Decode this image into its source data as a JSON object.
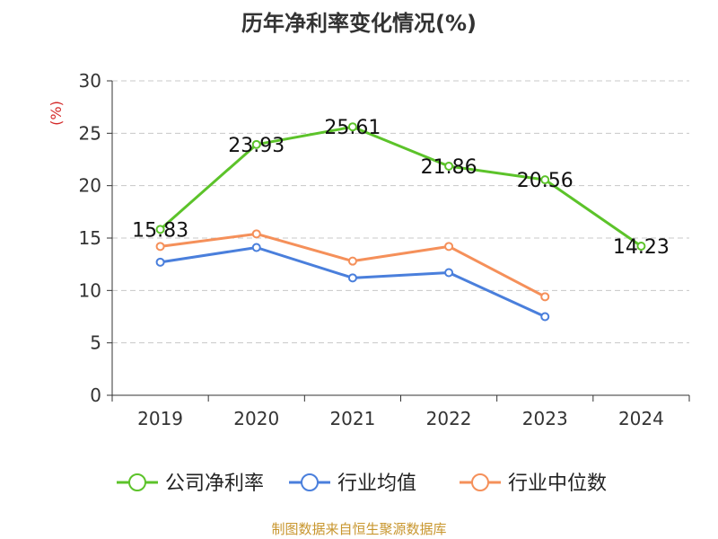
{
  "chart_data": {
    "type": "line",
    "title": "历年净利率变化情况(%)",
    "ylabel": "(%)",
    "categories": [
      "2019",
      "2020",
      "2021",
      "2022",
      "2023",
      "2024"
    ],
    "ylim": [
      0,
      30
    ],
    "yticks": [
      0,
      5,
      10,
      15,
      20,
      25,
      30
    ],
    "grid": true,
    "legend": "bottom",
    "series": [
      {
        "name": "公司净利率",
        "color": "#5cc32a",
        "values": [
          15.83,
          23.93,
          25.61,
          21.86,
          20.56,
          14.23
        ],
        "labels": [
          "15.83",
          "23.93",
          "25.61",
          "21.86",
          "20.56",
          "14.23"
        ]
      },
      {
        "name": "行业均值",
        "color": "#4a7fdc",
        "values": [
          12.7,
          14.1,
          11.2,
          11.7,
          7.5,
          null
        ]
      },
      {
        "name": "行业中位数",
        "color": "#f5905a",
        "values": [
          14.2,
          15.4,
          12.8,
          14.2,
          9.4,
          null
        ]
      }
    ]
  },
  "source": {
    "text": "制图数据来自恒生聚源数据库",
    "color": "#c8962e"
  },
  "colors": {
    "ylabel": "#d42a2a",
    "axis": "#333333",
    "grid": "#c8c8c8"
  }
}
